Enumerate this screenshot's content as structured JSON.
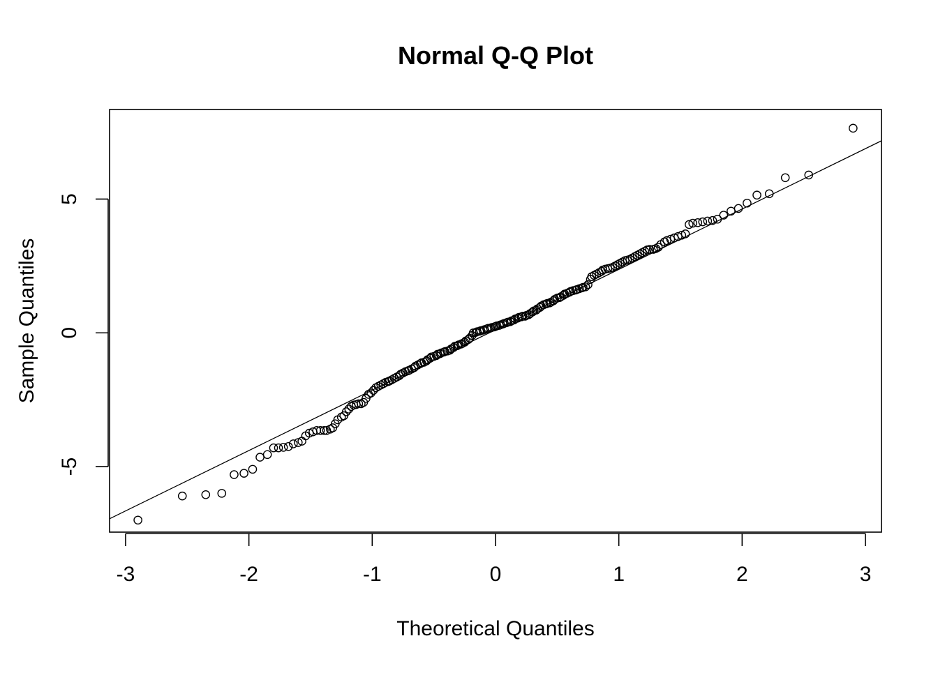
{
  "chart_data": {
    "type": "scatter",
    "title": "Normal Q-Q Plot",
    "xlabel": "Theoretical Quantiles",
    "ylabel": "Sample Quantiles",
    "xlim": [
      -3.13,
      3.13
    ],
    "ylim": [
      -7.45,
      8.35
    ],
    "x_ticks": [
      -3,
      -2,
      -1,
      0,
      1,
      2,
      3
    ],
    "x_tick_labels": [
      "-3",
      "-2",
      "-1",
      "0",
      "1",
      "2",
      "3"
    ],
    "y_ticks": [
      -5,
      0,
      5
    ],
    "y_tick_labels": [
      "-5",
      "0",
      "5"
    ],
    "grid": false,
    "reference_line": {
      "x": [
        -3.13,
        3.13
      ],
      "y": [
        -6.95,
        7.18
      ]
    },
    "series": [
      {
        "marker": "open-circle",
        "color": "#000000",
        "points": [
          [
            -2.9,
            -7.0
          ],
          [
            -2.54,
            -6.1
          ],
          [
            -2.35,
            -6.05
          ],
          [
            -2.22,
            -6.0
          ],
          [
            -2.12,
            -5.3
          ],
          [
            -2.04,
            -5.25
          ],
          [
            -1.97,
            -5.1
          ],
          [
            -1.91,
            -4.65
          ],
          [
            -1.85,
            -4.55
          ],
          [
            -1.8,
            -4.3
          ],
          [
            -1.76,
            -4.3
          ],
          [
            -1.72,
            -4.28
          ],
          [
            -1.68,
            -4.25
          ],
          [
            -1.64,
            -4.15
          ],
          [
            -1.6,
            -4.1
          ],
          [
            -1.57,
            -4.05
          ],
          [
            -1.54,
            -3.85
          ],
          [
            -1.51,
            -3.75
          ],
          [
            -1.48,
            -3.7
          ],
          [
            -1.45,
            -3.65
          ],
          [
            -1.42,
            -3.65
          ],
          [
            -1.39,
            -3.65
          ],
          [
            -1.37,
            -3.65
          ],
          [
            -1.34,
            -3.6
          ],
          [
            -1.32,
            -3.55
          ],
          [
            -1.3,
            -3.4
          ],
          [
            -1.28,
            -3.25
          ],
          [
            -1.25,
            -3.15
          ],
          [
            -1.23,
            -3.1
          ],
          [
            -1.21,
            -2.95
          ],
          [
            -1.19,
            -2.85
          ],
          [
            -1.17,
            -2.75
          ],
          [
            -1.15,
            -2.7
          ],
          [
            -1.13,
            -2.68
          ],
          [
            -1.11,
            -2.65
          ],
          [
            -1.09,
            -2.65
          ],
          [
            -1.07,
            -2.6
          ],
          [
            -1.05,
            -2.45
          ],
          [
            -1.03,
            -2.3
          ],
          [
            -1.01,
            -2.25
          ],
          [
            -0.99,
            -2.15
          ],
          [
            -0.97,
            -2.05
          ],
          [
            -0.95,
            -2.0
          ],
          [
            -0.93,
            -1.95
          ],
          [
            -0.91,
            -1.9
          ],
          [
            -0.89,
            -1.85
          ],
          [
            -0.87,
            -1.82
          ],
          [
            -0.86,
            -1.8
          ],
          [
            -0.84,
            -1.75
          ],
          [
            -0.82,
            -1.7
          ],
          [
            -0.8,
            -1.65
          ],
          [
            -0.78,
            -1.6
          ],
          [
            -0.77,
            -1.55
          ],
          [
            -0.75,
            -1.5
          ],
          [
            -0.73,
            -1.45
          ],
          [
            -0.71,
            -1.42
          ],
          [
            -0.7,
            -1.4
          ],
          [
            -0.68,
            -1.35
          ],
          [
            -0.66,
            -1.3
          ],
          [
            -0.65,
            -1.25
          ],
          [
            -0.63,
            -1.2
          ],
          [
            -0.61,
            -1.15
          ],
          [
            -0.6,
            -1.12
          ],
          [
            -0.58,
            -1.1
          ],
          [
            -0.56,
            -1.05
          ],
          [
            -0.55,
            -1.0
          ],
          [
            -0.53,
            -0.95
          ],
          [
            -0.52,
            -0.9
          ],
          [
            -0.5,
            -0.88
          ],
          [
            -0.48,
            -0.85
          ],
          [
            -0.47,
            -0.8
          ],
          [
            -0.45,
            -0.78
          ],
          [
            -0.44,
            -0.75
          ],
          [
            -0.42,
            -0.72
          ],
          [
            -0.41,
            -0.7
          ],
          [
            -0.39,
            -0.68
          ],
          [
            -0.37,
            -0.65
          ],
          [
            -0.36,
            -0.6
          ],
          [
            -0.34,
            -0.55
          ],
          [
            -0.33,
            -0.5
          ],
          [
            -0.31,
            -0.48
          ],
          [
            -0.3,
            -0.45
          ],
          [
            -0.28,
            -0.42
          ],
          [
            -0.27,
            -0.4
          ],
          [
            -0.25,
            -0.35
          ],
          [
            -0.24,
            -0.3
          ],
          [
            -0.22,
            -0.25
          ],
          [
            -0.21,
            -0.2
          ],
          [
            -0.19,
            -0.1
          ],
          [
            -0.18,
            0.0
          ],
          [
            -0.16,
            0.02
          ],
          [
            -0.15,
            0.04
          ],
          [
            -0.13,
            0.06
          ],
          [
            -0.12,
            0.08
          ],
          [
            -0.1,
            0.1
          ],
          [
            -0.09,
            0.12
          ],
          [
            -0.07,
            0.15
          ],
          [
            -0.06,
            0.17
          ],
          [
            -0.04,
            0.18
          ],
          [
            -0.03,
            0.2
          ],
          [
            -0.01,
            0.22
          ],
          [
            0.0,
            0.24
          ],
          [
            0.01,
            0.26
          ],
          [
            0.03,
            0.28
          ],
          [
            0.04,
            0.3
          ],
          [
            0.06,
            0.33
          ],
          [
            0.07,
            0.35
          ],
          [
            0.09,
            0.38
          ],
          [
            0.1,
            0.4
          ],
          [
            0.12,
            0.42
          ],
          [
            0.13,
            0.45
          ],
          [
            0.15,
            0.48
          ],
          [
            0.16,
            0.52
          ],
          [
            0.18,
            0.55
          ],
          [
            0.19,
            0.58
          ],
          [
            0.21,
            0.6
          ],
          [
            0.22,
            0.62
          ],
          [
            0.24,
            0.62
          ],
          [
            0.25,
            0.65
          ],
          [
            0.27,
            0.68
          ],
          [
            0.28,
            0.72
          ],
          [
            0.3,
            0.78
          ],
          [
            0.31,
            0.82
          ],
          [
            0.33,
            0.85
          ],
          [
            0.34,
            0.9
          ],
          [
            0.36,
            0.95
          ],
          [
            0.37,
            1.0
          ],
          [
            0.39,
            1.05
          ],
          [
            0.41,
            1.08
          ],
          [
            0.42,
            1.1
          ],
          [
            0.44,
            1.12
          ],
          [
            0.45,
            1.15
          ],
          [
            0.47,
            1.2
          ],
          [
            0.48,
            1.25
          ],
          [
            0.5,
            1.3
          ],
          [
            0.52,
            1.32
          ],
          [
            0.53,
            1.35
          ],
          [
            0.55,
            1.4
          ],
          [
            0.56,
            1.45
          ],
          [
            0.58,
            1.48
          ],
          [
            0.6,
            1.52
          ],
          [
            0.61,
            1.55
          ],
          [
            0.63,
            1.58
          ],
          [
            0.65,
            1.6
          ],
          [
            0.66,
            1.62
          ],
          [
            0.68,
            1.65
          ],
          [
            0.7,
            1.68
          ],
          [
            0.71,
            1.7
          ],
          [
            0.73,
            1.72
          ],
          [
            0.75,
            1.8
          ],
          [
            0.77,
            2.0
          ],
          [
            0.78,
            2.1
          ],
          [
            0.8,
            2.15
          ],
          [
            0.82,
            2.2
          ],
          [
            0.84,
            2.25
          ],
          [
            0.86,
            2.3
          ],
          [
            0.87,
            2.35
          ],
          [
            0.89,
            2.38
          ],
          [
            0.91,
            2.4
          ],
          [
            0.93,
            2.42
          ],
          [
            0.95,
            2.45
          ],
          [
            0.97,
            2.5
          ],
          [
            0.99,
            2.55
          ],
          [
            1.01,
            2.6
          ],
          [
            1.03,
            2.65
          ],
          [
            1.05,
            2.7
          ],
          [
            1.07,
            2.72
          ],
          [
            1.09,
            2.75
          ],
          [
            1.11,
            2.8
          ],
          [
            1.13,
            2.85
          ],
          [
            1.15,
            2.9
          ],
          [
            1.17,
            2.95
          ],
          [
            1.19,
            3.0
          ],
          [
            1.21,
            3.05
          ],
          [
            1.23,
            3.1
          ],
          [
            1.25,
            3.12
          ],
          [
            1.28,
            3.12
          ],
          [
            1.3,
            3.15
          ],
          [
            1.32,
            3.2
          ],
          [
            1.34,
            3.3
          ],
          [
            1.37,
            3.4
          ],
          [
            1.39,
            3.45
          ],
          [
            1.42,
            3.5
          ],
          [
            1.45,
            3.55
          ],
          [
            1.48,
            3.6
          ],
          [
            1.51,
            3.65
          ],
          [
            1.54,
            3.7
          ],
          [
            1.57,
            4.05
          ],
          [
            1.6,
            4.1
          ],
          [
            1.64,
            4.12
          ],
          [
            1.68,
            4.15
          ],
          [
            1.72,
            4.18
          ],
          [
            1.76,
            4.2
          ],
          [
            1.8,
            4.25
          ],
          [
            1.85,
            4.4
          ],
          [
            1.91,
            4.55
          ],
          [
            1.97,
            4.65
          ],
          [
            2.04,
            4.85
          ],
          [
            2.12,
            5.15
          ],
          [
            2.22,
            5.2
          ],
          [
            2.35,
            5.8
          ],
          [
            2.54,
            5.9
          ],
          [
            2.9,
            7.65
          ]
        ]
      }
    ]
  }
}
